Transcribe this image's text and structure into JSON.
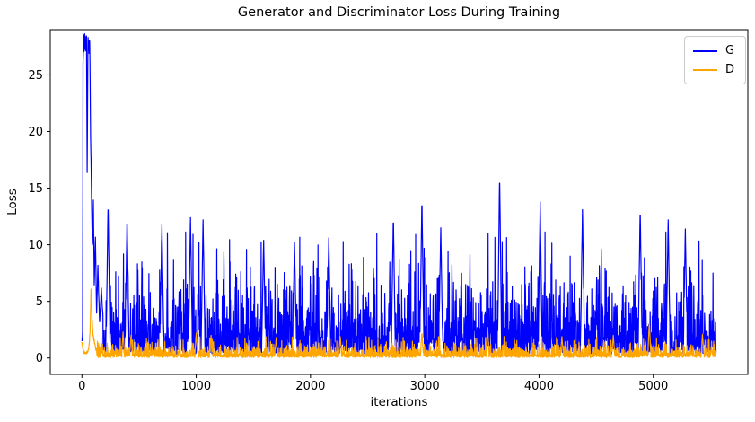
{
  "chart_data": {
    "type": "line",
    "title": "Generator and Discriminator Loss During Training",
    "xlabel": "iterations",
    "ylabel": "Loss",
    "xlim": [
      -277,
      5827
    ],
    "ylim": [
      -1.45,
      29.0
    ],
    "xticks": [
      0,
      1000,
      2000,
      3000,
      4000,
      5000
    ],
    "yticks": [
      0,
      5,
      10,
      15,
      20,
      25
    ],
    "grid": false,
    "background": "#ffffff",
    "axis_color": "#000000",
    "legend": {
      "position": "upper right",
      "entries": [
        {
          "label": "G",
          "color": "#0000ff"
        },
        {
          "label": "D",
          "color": "#ffa500"
        }
      ]
    },
    "n_iterations": 5550,
    "sample_step": 2,
    "seed": 20,
    "series": [
      {
        "name": "G",
        "color": "#0000ff",
        "line_width": 1.2,
        "spike_halfwidth": 16,
        "initial_transient": [
          [
            0,
            1.5
          ],
          [
            6,
            2.2
          ],
          [
            10,
            26.5
          ],
          [
            14,
            27.8
          ],
          [
            40,
            27.8
          ],
          [
            46,
            16.5
          ],
          [
            52,
            27.5
          ],
          [
            68,
            27.6
          ],
          [
            76,
            20.0
          ],
          [
            84,
            14.0
          ],
          [
            92,
            10.0
          ],
          [
            100,
            14.0
          ],
          [
            108,
            6.5
          ],
          [
            118,
            11.0
          ],
          [
            128,
            4.0
          ],
          [
            140,
            8.0
          ],
          [
            155,
            3.0
          ],
          [
            170,
            6.0
          ],
          [
            185,
            3.5
          ]
        ],
        "band": {
          "offset": 0.35,
          "scale": 2.0,
          "cap": 11.0
        },
        "spikes": [
          [
            229,
            13.8
          ],
          [
            395,
            12.5
          ],
          [
            700,
            11.8
          ],
          [
            950,
            12.4
          ],
          [
            1060,
            12.2
          ],
          [
            1590,
            10.4
          ],
          [
            1860,
            10.2
          ],
          [
            2160,
            10.6
          ],
          [
            2725,
            12.6
          ],
          [
            2975,
            14.2
          ],
          [
            3140,
            11.5
          ],
          [
            3655,
            16.3
          ],
          [
            4010,
            13.8
          ],
          [
            4380,
            13.1
          ],
          [
            4885,
            13.3
          ],
          [
            5130,
            12.2
          ],
          [
            5280,
            11.4
          ]
        ]
      },
      {
        "name": "D",
        "color": "#ffa500",
        "line_width": 1.2,
        "spike_halfwidth": 12,
        "initial_transient": [
          [
            0,
            1.3
          ],
          [
            15,
            0.6
          ],
          [
            40,
            0.4
          ],
          [
            60,
            0.8
          ],
          [
            72,
            2.5
          ],
          [
            80,
            6.1
          ],
          [
            88,
            3.5
          ],
          [
            96,
            2.2
          ],
          [
            108,
            1.5
          ],
          [
            120,
            0.9
          ],
          [
            130,
            0.6
          ]
        ],
        "band": {
          "offset": 0.04,
          "scale": 0.38,
          "cap": 1.9
        },
        "spikes": [
          [
            360,
            2.3
          ],
          [
            430,
            2.0
          ],
          [
            1000,
            2.2
          ],
          [
            1130,
            2.0
          ],
          [
            1700,
            1.8
          ],
          [
            2260,
            1.9
          ],
          [
            2975,
            2.3
          ],
          [
            3550,
            2.7
          ],
          [
            4200,
            1.9
          ],
          [
            4650,
            2.0
          ],
          [
            4965,
            3.2
          ],
          [
            5430,
            2.1
          ]
        ]
      }
    ]
  }
}
